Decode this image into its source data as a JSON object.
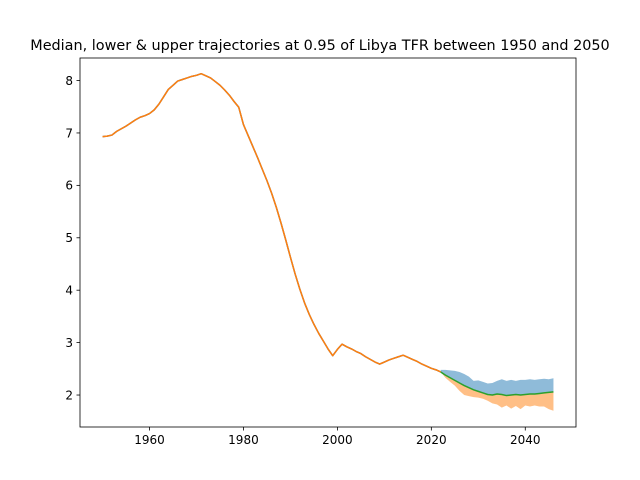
{
  "chart_data": {
    "type": "line",
    "title": "Median, lower & upper trajectories at 0.95 of Libya TFR between 1950 and 2050",
    "xlabel": "",
    "ylabel": "",
    "xlim": [
      1945.2,
      2050.8
    ],
    "ylim": [
      1.39,
      8.43
    ],
    "xticks": [
      1960,
      1980,
      2000,
      2020,
      2040
    ],
    "yticks": [
      2,
      3,
      4,
      5,
      6,
      7,
      8
    ],
    "grid": false,
    "colors": {
      "history": "#1f77b4",
      "history_overlay": "#ff7f0e",
      "median": "#2ca02c",
      "upper_band": "#1f77b4",
      "lower_band": "#ff7f0e"
    },
    "series": [
      {
        "x": [
          1950,
          1951,
          1952,
          1953,
          1954,
          1955,
          1956,
          1957,
          1958,
          1959,
          1960,
          1961,
          1962,
          1963,
          1964,
          1965,
          1966,
          1967,
          1968,
          1969,
          1970,
          1971,
          1972,
          1973,
          1974,
          1975,
          1976,
          1977,
          1978,
          1979,
          1980,
          1981,
          1982,
          1983,
          1984,
          1985,
          1986,
          1987,
          1988,
          1989,
          1990,
          1991,
          1992,
          1993,
          1994,
          1995,
          1996,
          1997,
          1998,
          1999,
          2000,
          2001,
          2002,
          2003,
          2004,
          2005,
          2006,
          2007,
          2008,
          2009,
          2010,
          2011,
          2012,
          2013,
          2014,
          2015,
          2016,
          2017,
          2018,
          2019,
          2020,
          2021,
          2022
        ],
        "values": [
          6.93,
          6.94,
          6.96,
          7.03,
          7.08,
          7.13,
          7.19,
          7.25,
          7.3,
          7.33,
          7.37,
          7.44,
          7.55,
          7.69,
          7.83,
          7.91,
          7.99,
          8.02,
          8.05,
          8.08,
          8.1,
          8.13,
          8.09,
          8.05,
          7.98,
          7.91,
          7.82,
          7.72,
          7.6,
          7.49,
          7.16,
          6.95,
          6.74,
          6.53,
          6.31,
          6.09,
          5.85,
          5.58,
          5.28,
          4.96,
          4.63,
          4.31,
          4.02,
          3.76,
          3.54,
          3.35,
          3.18,
          3.03,
          2.88,
          2.75,
          2.87,
          2.97,
          2.92,
          2.88,
          2.83,
          2.79,
          2.73,
          2.68,
          2.63,
          2.59,
          2.63,
          2.67,
          2.7,
          2.73,
          2.76,
          2.72,
          2.68,
          2.64,
          2.59,
          2.55,
          2.51,
          2.48,
          2.44
        ]
      },
      {
        "x": [
          2022,
          2023,
          2024,
          2025,
          2026,
          2027,
          2028,
          2029,
          2030,
          2031,
          2032,
          2033,
          2034,
          2035,
          2036,
          2037,
          2038,
          2039,
          2040,
          2041,
          2042,
          2043,
          2044,
          2045,
          2046
        ],
        "values": [
          2.44,
          2.38,
          2.33,
          2.28,
          2.23,
          2.18,
          2.14,
          2.1,
          2.07,
          2.04,
          2.01,
          2.0,
          2.02,
          2.01,
          1.99,
          2.0,
          2.01,
          2.0,
          2.01,
          2.02,
          2.02,
          2.03,
          2.04,
          2.05,
          2.06
        ]
      },
      {
        "x": [
          2022,
          2023,
          2024,
          2025,
          2026,
          2027,
          2028,
          2029,
          2030,
          2031,
          2032,
          2033,
          2034,
          2035,
          2036,
          2037,
          2038,
          2039,
          2040,
          2041,
          2042,
          2043,
          2044,
          2045,
          2046
        ],
        "values": [
          2.48,
          2.48,
          2.47,
          2.46,
          2.44,
          2.4,
          2.35,
          2.27,
          2.28,
          2.25,
          2.22,
          2.23,
          2.27,
          2.3,
          2.27,
          2.29,
          2.27,
          2.29,
          2.29,
          2.3,
          2.29,
          2.3,
          2.31,
          2.3,
          2.32
        ]
      },
      {
        "x": [
          2022,
          2023,
          2024,
          2025,
          2026,
          2027,
          2028,
          2029,
          2030,
          2031,
          2032,
          2033,
          2034,
          2035,
          2036,
          2037,
          2038,
          2039,
          2040,
          2041,
          2042,
          2043,
          2044,
          2045,
          2046
        ],
        "values": [
          2.44,
          2.33,
          2.25,
          2.18,
          2.08,
          2.0,
          1.98,
          1.96,
          1.95,
          1.93,
          1.89,
          1.84,
          1.82,
          1.76,
          1.8,
          1.74,
          1.79,
          1.73,
          1.8,
          1.78,
          1.8,
          1.78,
          1.78,
          1.73,
          1.7
        ]
      }
    ]
  }
}
